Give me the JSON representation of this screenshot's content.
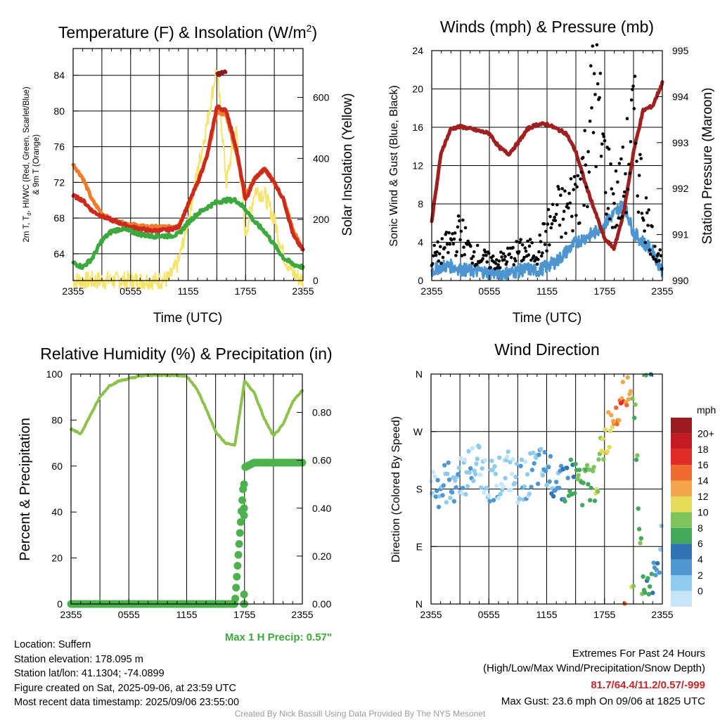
{
  "ticks_time": [
    "2355",
    "0555",
    "1155",
    "1755",
    "2355"
  ],
  "panels": {
    "temperature": {
      "title_main": "Temperature (F) & Insolation (W/m",
      "title_sup": "2",
      "title_end": ")",
      "ylabel_line1": "2m T, T",
      "ylabel_sub": "d",
      "ylabel_line1b": ", HI/WC (Red, Green, Scarlet/Blue)",
      "ylabel_line2": "& 9m T (Orange)",
      "y2label": "Solar Insolation (Yellow)",
      "xlabel": "Time (UTC)",
      "yticks": [
        "64",
        "68",
        "72",
        "76",
        "80",
        "84"
      ],
      "y2ticks": [
        "0",
        "200",
        "400",
        "600"
      ]
    },
    "winds": {
      "title": "Winds (mph) & Pressure (mb)",
      "ylabel": "Sonic Wind & Gust (Blue, Black)",
      "y2label": "Station Pressure (Maroon)",
      "xlabel": "Time (UTC)",
      "yticks": [
        "0",
        "4",
        "8",
        "12",
        "16",
        "20",
        "24"
      ],
      "y2ticks": [
        "990",
        "991",
        "992",
        "993",
        "994",
        "995"
      ]
    },
    "humidity": {
      "title": "Relative Humidity (%) & Precipitation (in)",
      "ylabel": "Percent & Precipitation",
      "yticks": [
        "0",
        "20",
        "40",
        "60",
        "80",
        "100"
      ],
      "y2ticks": [
        "0.00",
        "0.20",
        "0.40",
        "0.60",
        "0.80"
      ],
      "max_precip": "Max 1 H Precip: 0.57\""
    },
    "direction": {
      "title": "Wind Direction",
      "ylabel": "Direction (Colored By Speed)",
      "yticks": [
        "N",
        "E",
        "S",
        "W",
        "N"
      ],
      "legend_unit": "mph",
      "legend_labels": [
        "0",
        "2",
        "4",
        "6",
        "8",
        "10",
        "12",
        "14",
        "16",
        "18",
        "20+"
      ],
      "legend_colors": [
        "#c6e6f7",
        "#8ecbee",
        "#4f97d0",
        "#2f73b4",
        "#42a85a",
        "#7fc35c",
        "#e5dd58",
        "#f6a54a",
        "#ef6b2f",
        "#e02b26",
        "#c41b22",
        "#9b1b1f"
      ]
    }
  },
  "info": {
    "location": "Location: Suffern",
    "elevation": "Station elevation: 178.095 m",
    "latlon": "Station lat/lon: 41.1304; -74.0899",
    "created": "Figure created on Sat, 2025-09-06, at 23:59 UTC",
    "recent": "Most recent data timestamp: 2025/09/06 23:55:00"
  },
  "extremes": {
    "heading": "Extremes For Past 24 Hours",
    "subheading": "(High/Low/Max Wind/Precipitation/Snow Depth)",
    "values": "81.7/64.4/11.2/0.57/-999",
    "gust": "Max Gust: 23.6 mph On 09/06 at 1825 UTC"
  },
  "footer": "Created By Nick Bassill Using Data Provided By The NYS Mesonet",
  "colors": {
    "temp": "#cc2a1e",
    "dewpoint": "#3da83d",
    "nine_m": "#f07b2a",
    "heat_index": "#8b1a1a",
    "solar": "#f4e36b",
    "wind": "#4c95d0",
    "gust": "#000000",
    "pressure": "#a01f1f",
    "rh": "#8cc14b",
    "precip": "#4cb34c"
  },
  "chart_data": [
    {
      "type": "line",
      "x": [
        0,
        1,
        2,
        3,
        4,
        5,
        6,
        7,
        8,
        9,
        10,
        11,
        12,
        13,
        14,
        15,
        16,
        17,
        18,
        19,
        20,
        21,
        22,
        23,
        24
      ],
      "series": [
        {
          "name": "2m T",
          "values": [
            70.5,
            70.0,
            68.8,
            68.2,
            67.8,
            67.4,
            67.0,
            66.8,
            66.6,
            66.6,
            66.7,
            67.0,
            69.5,
            72.0,
            75.0,
            80.5,
            80.0,
            76.0,
            70.0,
            72.5,
            73.5,
            72.0,
            70.0,
            66.0,
            64.4
          ]
        },
        {
          "name": "T_d",
          "values": [
            63.0,
            62.5,
            63.5,
            65.5,
            66.5,
            66.8,
            66.5,
            66.2,
            66.0,
            66.0,
            66.0,
            66.2,
            67.5,
            68.5,
            69.2,
            69.8,
            70.0,
            70.0,
            69.0,
            67.5,
            66.5,
            65.0,
            63.5,
            62.8,
            62.5
          ]
        },
        {
          "name": "9m T",
          "values": [
            74.0,
            72.5,
            70.0,
            68.5,
            67.8,
            67.5,
            67.3,
            67.1,
            67.0,
            67.0,
            67.0,
            67.2,
            69.5,
            72.0,
            75.0,
            80.0,
            79.5,
            75.5,
            70.5,
            72.5,
            73.5,
            72.0,
            70.0,
            66.5,
            64.5
          ]
        },
        {
          "name": "HI",
          "values": [
            null,
            null,
            null,
            null,
            null,
            null,
            null,
            null,
            null,
            null,
            null,
            null,
            null,
            null,
            null,
            84.0,
            84.5,
            null,
            null,
            null,
            null,
            null,
            null,
            null,
            null
          ]
        },
        {
          "name": "Solar",
          "values": [
            0,
            0,
            0,
            0,
            0,
            0,
            0,
            0,
            0,
            0,
            5,
            60,
            200,
            360,
            520,
            700,
            320,
            500,
            150,
            300,
            280,
            200,
            80,
            20,
            0
          ]
        }
      ],
      "ylim": [
        61,
        87
      ],
      "y2lim": [
        0,
        760
      ]
    },
    {
      "type": "line",
      "x": [
        0,
        1,
        2,
        3,
        4,
        5,
        6,
        7,
        8,
        9,
        10,
        11,
        12,
        13,
        14,
        15,
        16,
        17,
        18,
        19,
        20,
        21,
        22,
        23,
        24
      ],
      "series": [
        {
          "name": "Sonic Wind",
          "values": [
            1.0,
            1.5,
            1.5,
            1.2,
            1.0,
            1.0,
            0.8,
            0.8,
            0.8,
            1.0,
            1.2,
            1.0,
            1.5,
            2.0,
            3.0,
            4.0,
            4.5,
            5.0,
            6.0,
            7.0,
            8.0,
            5.0,
            4.0,
            3.0,
            1.0
          ]
        },
        {
          "name": "Gust",
          "values": [
            2.5,
            3.0,
            4.0,
            5.0,
            3.0,
            2.5,
            2.0,
            2.0,
            2.5,
            3.0,
            3.0,
            3.0,
            5.0,
            7.0,
            7.0,
            9.0,
            12.0,
            20.0,
            12.0,
            8.0,
            10.0,
            16.0,
            8.0,
            4.0,
            2.0
          ]
        },
        {
          "name": "Pressure",
          "values": [
            991.3,
            992.8,
            993.3,
            993.35,
            993.3,
            993.25,
            993.2,
            992.9,
            992.75,
            993.0,
            993.3,
            993.4,
            993.4,
            993.3,
            993.2,
            992.8,
            992.1,
            991.5,
            990.9,
            990.7,
            991.5,
            992.8,
            993.7,
            993.8,
            994.3
          ]
        }
      ],
      "ylim": [
        0,
        24
      ],
      "y2lim": [
        990,
        995
      ]
    },
    {
      "type": "line",
      "x": [
        0,
        1,
        2,
        3,
        4,
        5,
        6,
        7,
        8,
        9,
        10,
        11,
        12,
        13,
        14,
        15,
        16,
        17,
        18,
        19,
        20,
        21,
        22,
        23,
        24
      ],
      "series": [
        {
          "name": "Relative Humidity",
          "values": [
            76,
            74,
            82,
            90,
            95,
            97,
            98,
            99,
            99.5,
            99.5,
            99.5,
            99.5,
            99,
            94,
            85,
            75,
            70,
            69,
            97,
            92,
            81,
            73,
            78,
            88,
            93
          ]
        },
        {
          "name": "Precipitation",
          "values": [
            0,
            0,
            0,
            0,
            0,
            0,
            0,
            0,
            0,
            0,
            0,
            0,
            0,
            0,
            0,
            0,
            0,
            0,
            0.57,
            0.59,
            0.59,
            0.59,
            0.59,
            0.59,
            0.59
          ]
        }
      ],
      "ylim": [
        0,
        100
      ],
      "y2lim": [
        0,
        0.96
      ]
    },
    {
      "type": "scatter",
      "x": [
        0,
        1,
        2,
        3,
        4,
        5,
        6,
        7,
        8,
        9,
        10,
        11,
        12,
        13,
        14,
        15,
        16,
        17,
        18,
        19,
        20,
        21,
        22,
        23,
        24
      ],
      "series": [
        {
          "name": "Wind Direction",
          "values": [
            185,
            180,
            190,
            200,
            210,
            220,
            190,
            200,
            205,
            185,
            200,
            210,
            205,
            200,
            195,
            195,
            185,
            190,
            250,
            300,
            340,
            355,
            10,
            30,
            100
          ]
        },
        {
          "name": "Speed",
          "values": [
            1.0,
            1.5,
            1.5,
            1.2,
            1.0,
            1.0,
            0.8,
            0.8,
            0.8,
            1.0,
            1.2,
            1.0,
            1.5,
            2.0,
            3.0,
            4.0,
            4.5,
            5.0,
            6.0,
            7.0,
            8.0,
            5.0,
            4.0,
            3.0,
            1.0
          ]
        }
      ],
      "ylim": [
        0,
        360
      ]
    }
  ]
}
